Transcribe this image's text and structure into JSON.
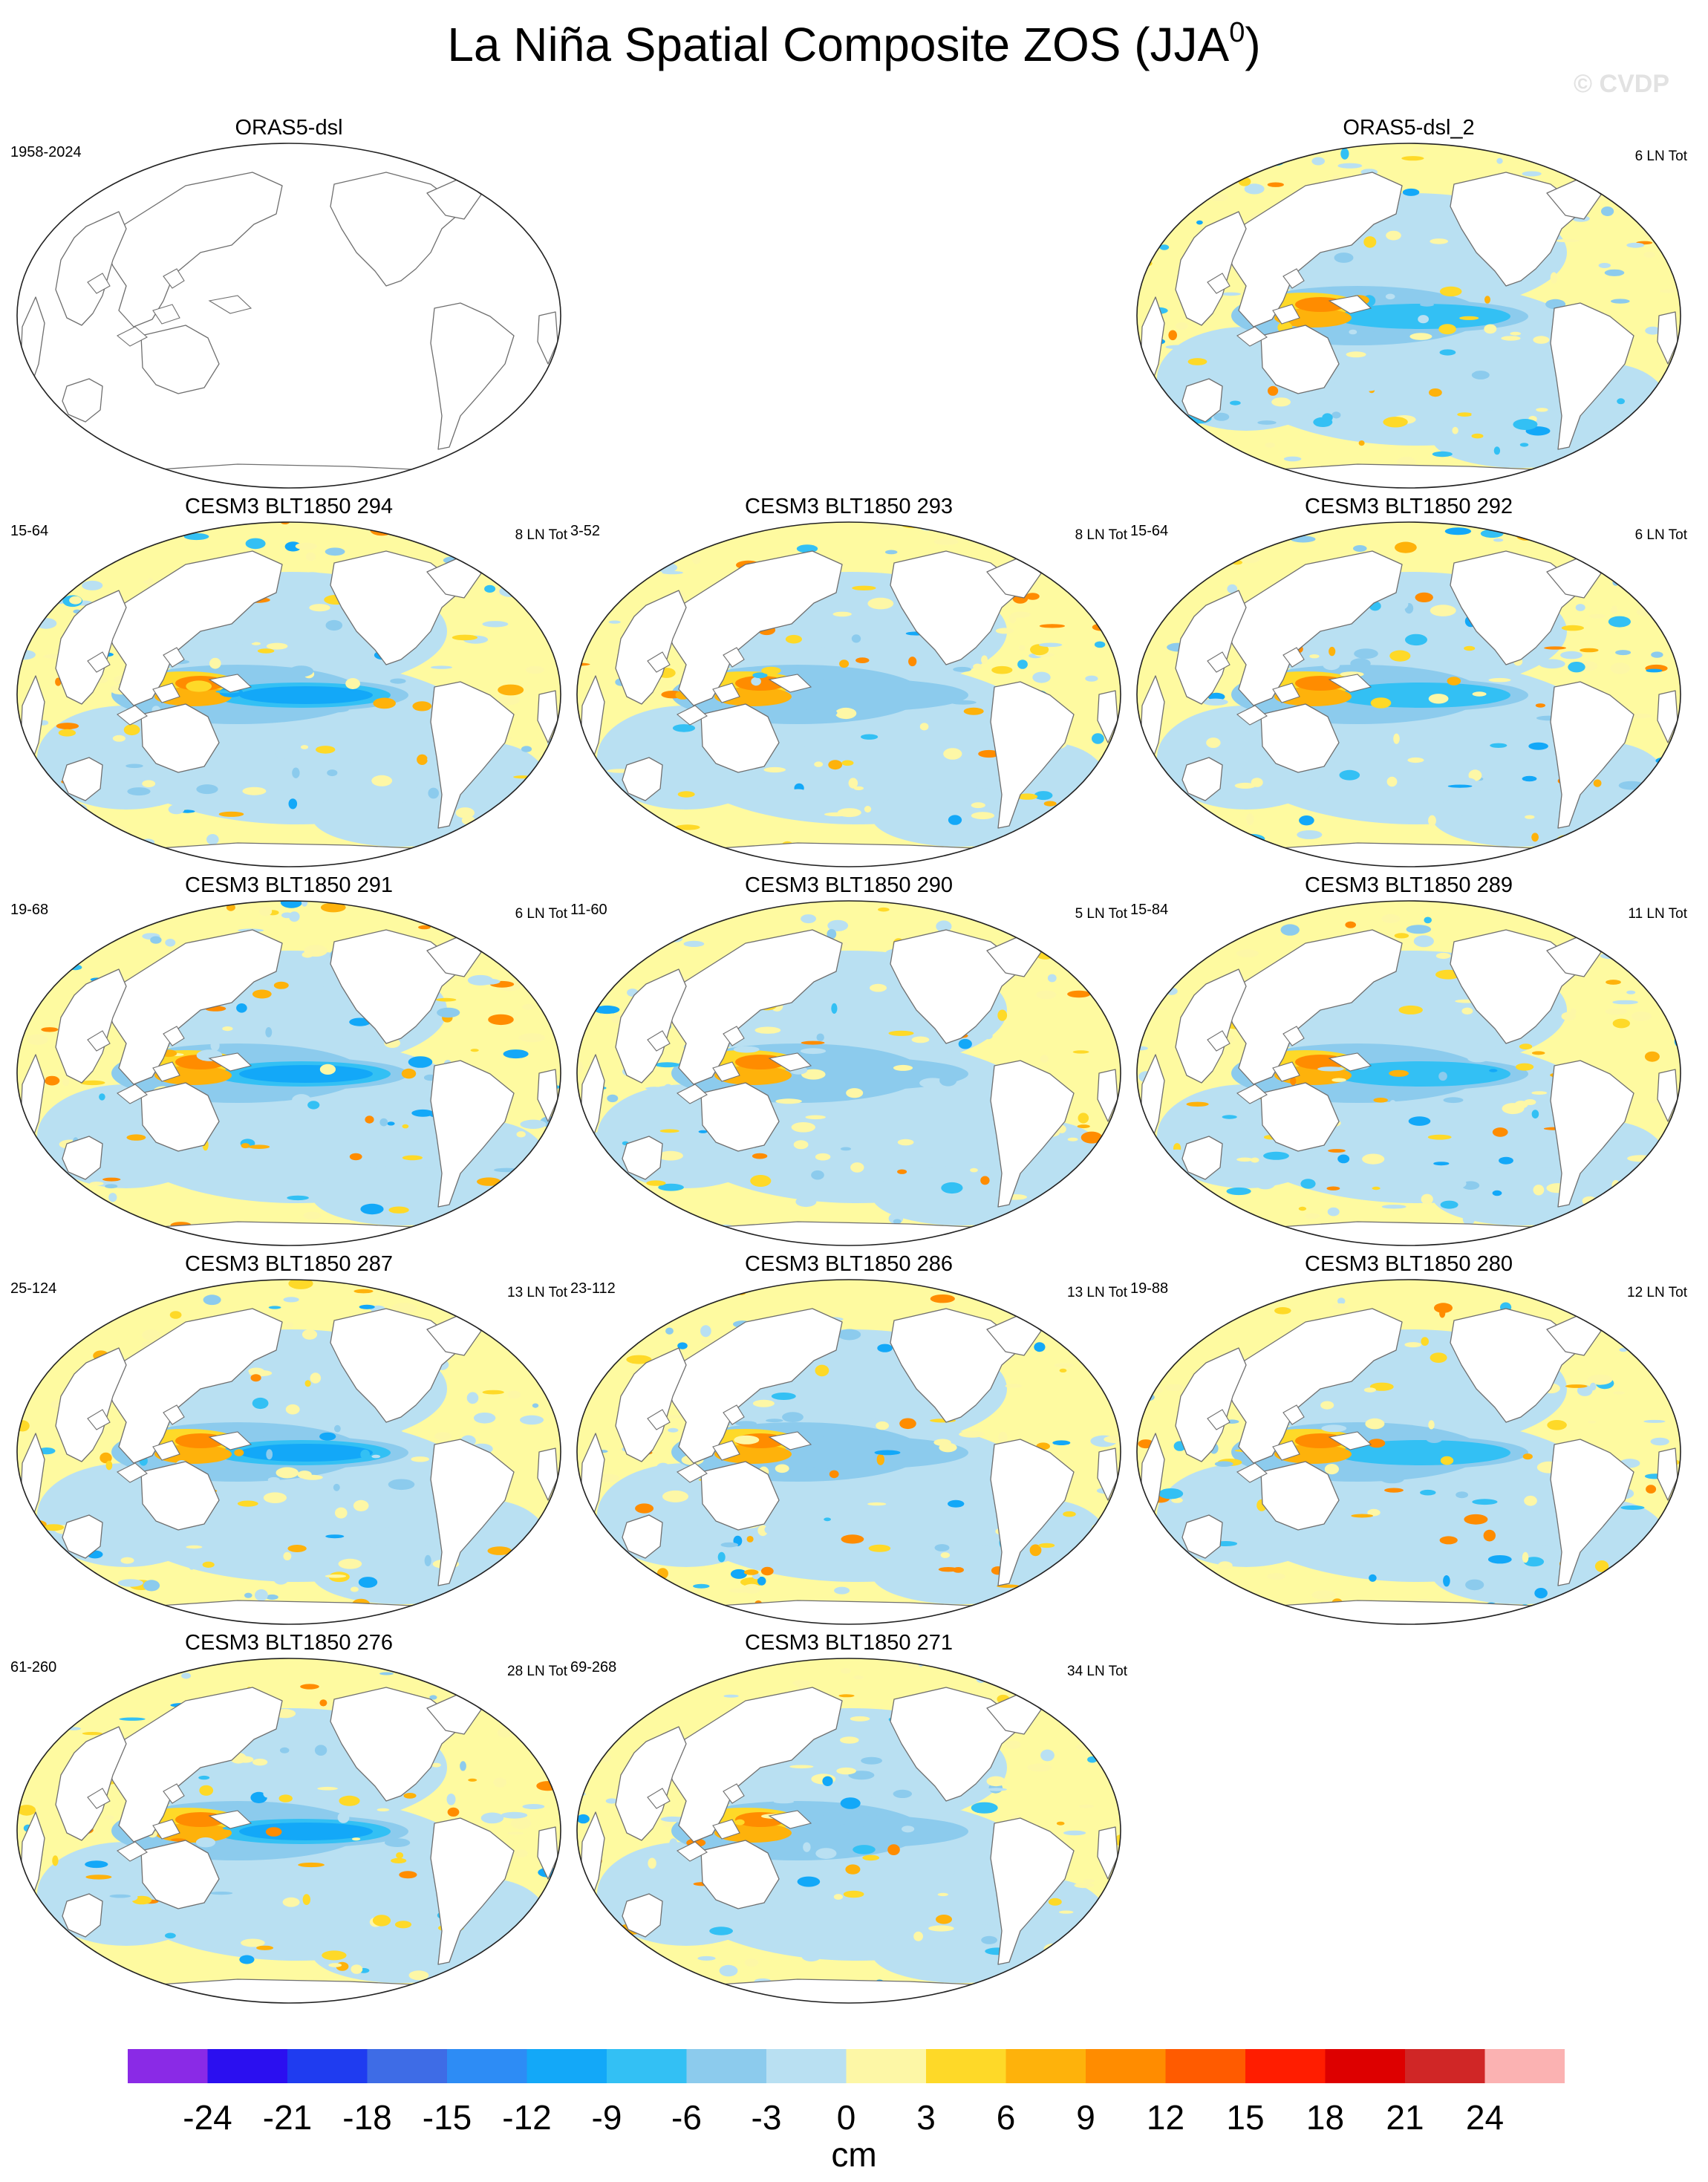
{
  "title": {
    "main": "La Niña Spatial Composite ZOS (JJA",
    "superscript": "0",
    "close": ")"
  },
  "watermark": "© CVDP",
  "map_style": {
    "land_color": "#ffffff",
    "coast_color": "#6f6f6f",
    "ocean_base_color": "#fefaa0"
  },
  "panels": [
    {
      "title": "ORAS5-dsl",
      "years": "1958-2024",
      "count": "",
      "filled": false
    },
    {
      "title": "ORAS5-dsl_2",
      "years": "",
      "count": "6 LN Tot",
      "filled": true,
      "variant": 1
    },
    {
      "title": "CESM3 BLT1850 294",
      "years": "15-64",
      "count": "8 LN Tot",
      "filled": true,
      "variant": 2
    },
    {
      "title": "CESM3 BLT1850 293",
      "years": "3-52",
      "count": "8 LN Tot",
      "filled": true,
      "variant": 3
    },
    {
      "title": "CESM3 BLT1850 292",
      "years": "15-64",
      "count": "6 LN Tot",
      "filled": true,
      "variant": 4
    },
    {
      "title": "CESM3 BLT1850 291",
      "years": "19-68",
      "count": "6 LN Tot",
      "filled": true,
      "variant": 5
    },
    {
      "title": "CESM3 BLT1850 290",
      "years": "11-60",
      "count": "5 LN Tot",
      "filled": true,
      "variant": 6
    },
    {
      "title": "CESM3 BLT1850 289",
      "years": "15-84",
      "count": "11 LN Tot",
      "filled": true,
      "variant": 7
    },
    {
      "title": "CESM3 BLT1850 287",
      "years": "25-124",
      "count": "13 LN Tot",
      "filled": true,
      "variant": 8
    },
    {
      "title": "CESM3 BLT1850 286",
      "years": "23-112",
      "count": "13 LN Tot",
      "filled": true,
      "variant": 9
    },
    {
      "title": "CESM3 BLT1850 280",
      "years": "19-88",
      "count": "12 LN Tot",
      "filled": true,
      "variant": 10
    },
    {
      "title": "CESM3 BLT1850 276",
      "years": "61-260",
      "count": "28 LN Tot",
      "filled": true,
      "variant": 11
    },
    {
      "title": "CESM3 BLT1850 271",
      "years": "69-268",
      "count": "34 LN Tot",
      "filled": true,
      "variant": 12
    }
  ],
  "colorbar": {
    "unit": "cm",
    "colors": [
      "#8a2ae6",
      "#2b0ff0",
      "#1f3cf0",
      "#3e6ce6",
      "#2d8cf5",
      "#13a8f8",
      "#33c0f4",
      "#8ccbed",
      "#b9e0f2",
      "#fdf7a6",
      "#fed928",
      "#feb20b",
      "#ff8c00",
      "#ff5b00",
      "#ff1d00",
      "#dd0000",
      "#d02626",
      "#fbb2b2"
    ],
    "labels": [
      "-24",
      "-21",
      "-18",
      "-15",
      "-12",
      "-9",
      "-6",
      "-3",
      "0",
      "3",
      "6",
      "9",
      "12",
      "15",
      "18",
      "21",
      "24"
    ]
  }
}
